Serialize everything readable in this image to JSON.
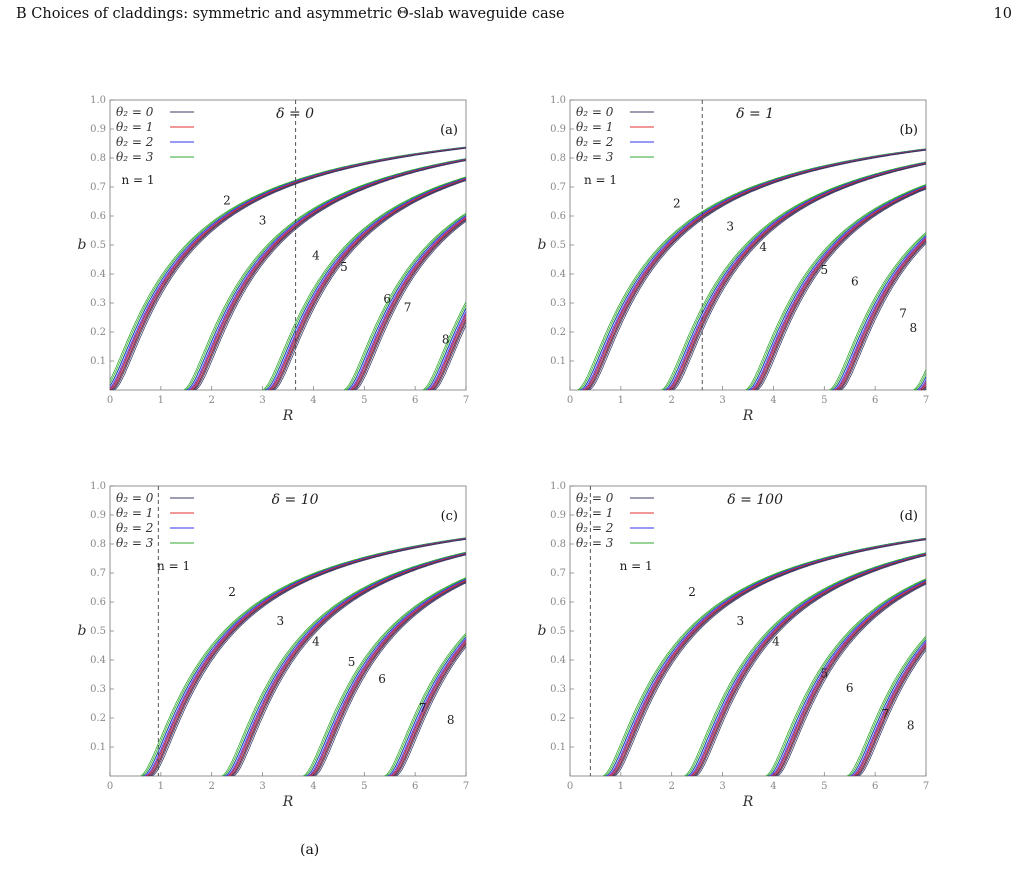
{
  "header": {
    "title": "B   Choices of claddings: symmetric and asymmetric Θ-slab waveguide case",
    "page_number": "10"
  },
  "caption": "(a)",
  "colors": {
    "theta0": "#3a3a66",
    "theta1": "#e03030",
    "theta2": "#3030ee",
    "theta3": "#30a830"
  },
  "legend": [
    {
      "label": "θ₂ = 0",
      "color": "#3a3a66"
    },
    {
      "label": "θ₂ = 1",
      "color": "#e03030"
    },
    {
      "label": "θ₂ = 2",
      "color": "#3030ee"
    },
    {
      "label": "θ₂ = 3",
      "color": "#30a830"
    }
  ],
  "chart_data": [
    {
      "type": "line",
      "panel_label": "(a)",
      "annotation": "δ = 0",
      "delta_line_R": 3.65,
      "xlabel": "R",
      "ylabel": "b",
      "xlim": [
        0,
        7
      ],
      "ylim": [
        0,
        1
      ],
      "x_ticks": [
        "0",
        "1",
        "2",
        "3",
        "4",
        "5",
        "6",
        "7"
      ],
      "y_ticks": [
        "0.1",
        "0.2",
        "0.3",
        "0.4",
        "0.5",
        "0.6",
        "0.7",
        "0.8",
        "0.9",
        "1.0"
      ],
      "mode_cutoffs_theta0": [
        0.0,
        1.6,
        3.15,
        4.75,
        6.3
      ],
      "mode_labels": [
        {
          "text": "n = 1",
          "R": 0.55,
          "b": 0.71
        },
        {
          "text": "2",
          "R": 2.3,
          "b": 0.64
        },
        {
          "text": "3",
          "R": 3.0,
          "b": 0.57
        },
        {
          "text": "4",
          "R": 4.05,
          "b": 0.45
        },
        {
          "text": "5",
          "R": 4.6,
          "b": 0.41
        },
        {
          "text": "6",
          "R": 5.45,
          "b": 0.3
        },
        {
          "text": "7",
          "R": 5.85,
          "b": 0.27
        },
        {
          "text": "8",
          "R": 6.6,
          "b": 0.16
        }
      ]
    },
    {
      "type": "line",
      "panel_label": "(b)",
      "annotation": "δ = 1",
      "delta_line_R": 2.6,
      "xlabel": "R",
      "ylabel": "b",
      "xlim": [
        0,
        7
      ],
      "ylim": [
        0,
        1
      ],
      "x_ticks": [
        "0",
        "1",
        "2",
        "3",
        "4",
        "5",
        "6",
        "7"
      ],
      "y_ticks": [
        "0.1",
        "0.2",
        "0.3",
        "0.4",
        "0.5",
        "0.6",
        "0.7",
        "0.8",
        "0.9",
        "1.0"
      ],
      "mode_cutoffs_theta0": [
        0.3,
        1.95,
        3.6,
        5.25,
        6.9
      ],
      "mode_labels": [
        {
          "text": "n = 1",
          "R": 0.6,
          "b": 0.71
        },
        {
          "text": "2",
          "R": 2.1,
          "b": 0.63
        },
        {
          "text": "3",
          "R": 3.15,
          "b": 0.55
        },
        {
          "text": "4",
          "R": 3.8,
          "b": 0.48
        },
        {
          "text": "5",
          "R": 5.0,
          "b": 0.4
        },
        {
          "text": "6",
          "R": 5.6,
          "b": 0.36
        },
        {
          "text": "7",
          "R": 6.55,
          "b": 0.25
        },
        {
          "text": "8",
          "R": 6.75,
          "b": 0.2
        }
      ]
    },
    {
      "type": "line",
      "panel_label": "(c)",
      "annotation": "δ = 10",
      "delta_line_R": 0.95,
      "xlabel": "R",
      "ylabel": "b",
      "xlim": [
        0,
        7
      ],
      "ylim": [
        0,
        1
      ],
      "x_ticks": [
        "0",
        "1",
        "2",
        "3",
        "4",
        "5",
        "6",
        "7"
      ],
      "y_ticks": [
        "0.1",
        "0.2",
        "0.3",
        "0.4",
        "0.5",
        "0.6",
        "0.7",
        "0.8",
        "0.9",
        "1.0"
      ],
      "mode_cutoffs_theta0": [
        0.75,
        2.35,
        3.95,
        5.55,
        7.15
      ],
      "mode_labels": [
        {
          "text": "n = 1",
          "R": 1.25,
          "b": 0.71
        },
        {
          "text": "2",
          "R": 2.4,
          "b": 0.62
        },
        {
          "text": "3",
          "R": 3.35,
          "b": 0.52
        },
        {
          "text": "4",
          "R": 4.05,
          "b": 0.45
        },
        {
          "text": "5",
          "R": 4.75,
          "b": 0.38
        },
        {
          "text": "6",
          "R": 5.35,
          "b": 0.32
        },
        {
          "text": "7",
          "R": 6.15,
          "b": 0.22
        },
        {
          "text": "8",
          "R": 6.7,
          "b": 0.18
        }
      ]
    },
    {
      "type": "line",
      "panel_label": "(d)",
      "annotation": "δ = 100",
      "delta_line_R": 0.4,
      "xlabel": "R",
      "ylabel": "b",
      "xlim": [
        0,
        7
      ],
      "ylim": [
        0,
        1
      ],
      "x_ticks": [
        "0",
        "1",
        "2",
        "3",
        "4",
        "5",
        "6",
        "7"
      ],
      "y_ticks": [
        "0.1",
        "0.2",
        "0.3",
        "0.4",
        "0.5",
        "0.6",
        "0.7",
        "0.8",
        "0.9",
        "1.0"
      ],
      "mode_cutoffs_theta0": [
        0.8,
        2.4,
        4.0,
        5.6,
        7.2
      ],
      "mode_labels": [
        {
          "text": "n = 1",
          "R": 1.3,
          "b": 0.71
        },
        {
          "text": "2",
          "R": 2.4,
          "b": 0.62
        },
        {
          "text": "3",
          "R": 3.35,
          "b": 0.52
        },
        {
          "text": "4",
          "R": 4.05,
          "b": 0.45
        },
        {
          "text": "5",
          "R": 5.0,
          "b": 0.34
        },
        {
          "text": "6",
          "R": 5.5,
          "b": 0.29
        },
        {
          "text": "7",
          "R": 6.2,
          "b": 0.2
        },
        {
          "text": "8",
          "R": 6.7,
          "b": 0.16
        }
      ]
    }
  ]
}
